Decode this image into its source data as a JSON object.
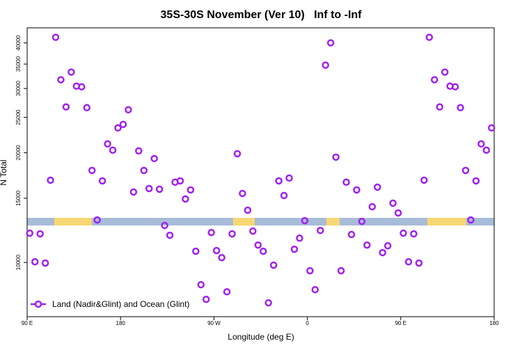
{
  "chart_data": {
    "type": "scatter",
    "title": "35S-30S November (Ver 10)   Inf to -Inf",
    "x_label": "Longitude (deg E)",
    "y_label": "N Total",
    "log_y": true,
    "legend": "bottom-left",
    "xlim": [
      90,
      540
    ],
    "xticks": [
      {
        "value": 90,
        "label": "90 E"
      },
      180,
      {
        "value": 270,
        "label": "90 W"
      },
      {
        "value": 360,
        "label": "0"
      },
      {
        "value": 450,
        "label": "90 E"
      },
      {
        "value": 540,
        "label": "180"
      }
    ],
    "ylim": [
      7100,
      44000
    ],
    "yticks": [
      10000,
      15000,
      20000,
      25000,
      30000,
      35000,
      40000
    ],
    "series": [
      {
        "name": "Land (Nadir&Glint) and Ocean (Glint)",
        "color": "#a020f0",
        "x": [
          92.5,
          97.5,
          102.5,
          107.5,
          112.5,
          117.5,
          122.5,
          127.5,
          132.5,
          137.5,
          142.5,
          147.5,
          152.5,
          157.5,
          162.5,
          167.5,
          172.5,
          177.5,
          182.5,
          187.5,
          192.5,
          197.5,
          202.5,
          207.5,
          212.5,
          217.5,
          222.5,
          227.5,
          232.5,
          237.5,
          242.5,
          247.5,
          252.5,
          257.5,
          262.5,
          267.5,
          272.5,
          277.5,
          282.5,
          287.5,
          292.5,
          297.5,
          302.5,
          307.5,
          312.5,
          317.5,
          322.5,
          327.5,
          332.5,
          337.5,
          342.5,
          347.5,
          352.5,
          357.5,
          362.5,
          367.5,
          372.5,
          377.5,
          382.5,
          387.5,
          392.5,
          397.5,
          402.5,
          407.5,
          412.5,
          417.5,
          422.5,
          427.5,
          432.5,
          437.5,
          442.5,
          447.5,
          452.5,
          457.5,
          462.5,
          467.5,
          472.5,
          477.5,
          482.5,
          487.5,
          492.5,
          497.5,
          502.5,
          507.5,
          512.5,
          517.5,
          522.5,
          527.5,
          532.5,
          537.5
        ],
        "values": [
          12030,
          10040,
          11980,
          9960,
          16810,
          41450,
          31700,
          26700,
          33270,
          30450,
          30320,
          26580,
          17880,
          13080,
          16740,
          21140,
          20320,
          23390,
          23910,
          26230,
          15600,
          20230,
          17880,
          15950,
          19270,
          15880,
          12630,
          11870,
          16600,
          16740,
          14930,
          15810,
          10730,
          8690,
          7920,
          12080,
          10780,
          10310,
          8310,
          11980,
          19870,
          15460,
          13910,
          12190,
          11160,
          10730,
          7750,
          9830,
          16740,
          15260,
          17040,
          10870,
          11660,
          13020,
          9490,
          8420,
          12240,
          34760,
          40020,
          19440,
          9490,
          16600,
          11930,
          15810,
          12960,
          11160,
          14220,
          16090,
          10640,
          11110,
          14540,
          13670,
          12030,
          10040,
          11980,
          9960,
          16810,
          41450,
          31700,
          26700,
          33270,
          30450,
          30320,
          26580,
          17880,
          13080,
          16740,
          21140,
          20320,
          23390
        ]
      }
    ]
  }
}
